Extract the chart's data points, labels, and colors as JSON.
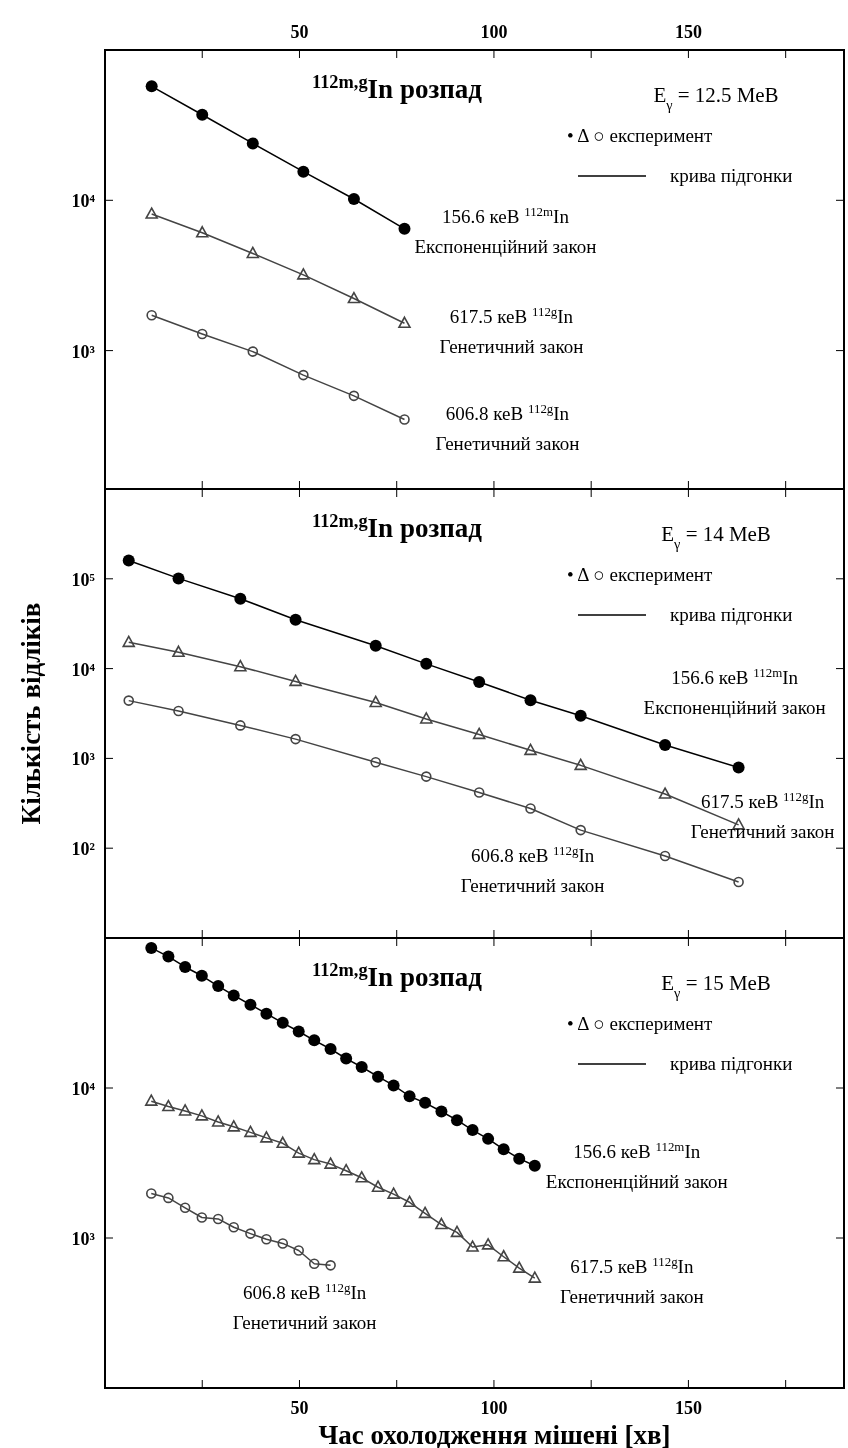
{
  "chart_data": [
    {
      "type": "line",
      "title": "$^{112m,g}$In розпад",
      "subtitle": "E$_{γ}$ = 12.5 МеВ",
      "xlim": [
        0,
        190
      ],
      "xticks": [
        {
          "value": 25,
          "label": null
        },
        50,
        {
          "value": 75,
          "label": null
        },
        100,
        {
          "value": 125,
          "label": null
        },
        150,
        {
          "value": 175,
          "label": null
        }
      ],
      "ylim": [
        120,
        100000
      ],
      "yticks": [
        {
          "value": 1000,
          "label": "10³"
        },
        {
          "value": 10000,
          "label": "10⁴"
        }
      ],
      "log": true,
      "grid": false,
      "line_style": "solid",
      "series": [
        {
          "name": "156.6 кеВ $^{112m}$In\nЕкспоненційний закон",
          "color": "#000000",
          "marker": "circle",
          "x": [
            12,
            25,
            38,
            51,
            64,
            77
          ],
          "values": [
            57300,
            37100,
            23900,
            15500,
            10200,
            6460
          ]
        },
        {
          "name": "617.5 кеВ $^{112g}$In\nГенетичний закон",
          "color": "#444444",
          "marker": "triangle",
          "x": [
            12,
            25,
            38,
            51,
            64,
            77
          ],
          "values": [
            8100,
            6080,
            4430,
            3190,
            2220,
            1520
          ]
        },
        {
          "name": "606.8 кеВ $^{112g}$In\nГенетичний закон",
          "color": "#444444",
          "marker": "circle",
          "x": [
            12,
            25,
            38,
            51,
            64,
            77
          ],
          "values": [
            1720,
            1290,
            985,
            687,
            500,
            348
          ]
        }
      ],
      "annotations": [
        "•   Δ   ○   експеримент",
        "крива підгонки"
      ]
    },
    {
      "type": "line",
      "title": "$^{112m,g}$In розпад",
      "subtitle": "E$_{γ}$ = 14 МеВ",
      "ylabel": "Кількість відліків",
      "xlim": [
        0,
        190
      ],
      "xticks": [
        {
          "value": 25,
          "label": null
        },
        {
          "value": 50,
          "label": null
        },
        {
          "value": 75,
          "label": null
        },
        {
          "value": 100,
          "label": null
        },
        {
          "value": 125,
          "label": null
        },
        {
          "value": 150,
          "label": null
        },
        {
          "value": 175,
          "label": null
        }
      ],
      "log": true,
      "ylim": [
        10,
        1000000
      ],
      "yticks": [
        {
          "value": 100,
          "label": "10²"
        },
        {
          "value": 1000,
          "label": "10³"
        },
        {
          "value": 10000,
          "label": "10⁴"
        },
        {
          "value": 100000,
          "label": "10⁵"
        }
      ],
      "tick_labels": "y",
      "grid": false,
      "line_style": "solid",
      "series": [
        {
          "name": "156.6 кеВ $^{112m}$In\nЕкспоненційний закон",
          "color": "#000000",
          "marker": "circle",
          "x": [
            6.1,
            18.9,
            34.8,
            49,
            69.6,
            82.6,
            96.2,
            109.4,
            122.3,
            144,
            162.9
          ],
          "values": [
            160000,
            101000,
            60000,
            35000,
            18000,
            11300,
            7100,
            4450,
            2990,
            1410,
            791
          ]
        },
        {
          "name": "617.5 кеВ $^{112g}$In\nГенетичний закон",
          "color": "#444444",
          "marker": "triangle",
          "x": [
            6.1,
            18.9,
            34.8,
            49,
            69.6,
            82.6,
            96.2,
            109.4,
            122.3,
            144,
            162.9
          ],
          "values": [
            19600,
            15200,
            10500,
            7200,
            4200,
            2750,
            1850,
            1230,
            837,
            401,
            182
          ]
        },
        {
          "name": "606.8 кеВ $^{112g}$In\nГенетичний закон",
          "color": "#444444",
          "marker": "circle",
          "x": [
            6.1,
            18.9,
            34.8,
            49,
            69.6,
            82.6,
            96.2,
            109.4,
            122.3,
            144,
            162.9
          ],
          "values": [
            4400,
            3370,
            2330,
            1640,
            906,
            627,
            417,
            277,
            159,
            82,
            42
          ]
        }
      ],
      "annotations": [
        "•   Δ   ○   експеримент",
        "крива підгонки"
      ]
    },
    {
      "type": "line",
      "title": "$^{112m,g}$In розпад",
      "subtitle": "E$_{γ}$ = 15 МеВ",
      "xlabel": "Час охолодження мішені  [хв]",
      "xlim": [
        0,
        190
      ],
      "xticks": [
        {
          "value": 25,
          "label": null
        },
        50,
        {
          "value": 75,
          "label": null
        },
        100,
        {
          "value": 125,
          "label": null
        },
        150,
        {
          "value": 175,
          "label": null
        }
      ],
      "ylim": [
        100,
        100000
      ],
      "yticks": [
        {
          "value": 1000,
          "label": "10³"
        },
        {
          "value": 10000,
          "label": "10⁴"
        }
      ],
      "log": true,
      "grid": false,
      "line_style": "solid",
      "series": [
        {
          "name": "156.6 кеВ $^{112m}$In\nЕкспоненційний закон",
          "color": "#000000",
          "marker": "circle",
          "x": [
            11.9,
            16.3,
            20.6,
            24.9,
            29.1,
            33.1,
            37.4,
            41.5,
            45.7,
            49.8,
            53.8,
            58,
            62,
            66,
            70.2,
            74.2,
            78.3,
            82.3,
            86.5,
            90.5,
            94.5,
            98.5,
            102.5,
            106.5,
            110.5
          ],
          "values": [
            85900,
            75200,
            64100,
            56000,
            47800,
            41400,
            35900,
            31300,
            27200,
            23800,
            20800,
            18200,
            15700,
            13800,
            11900,
            10400,
            8810,
            7960,
            6970,
            6100,
            5240,
            4580,
            3900,
            3380,
            3030
          ]
        },
        {
          "name": "617.5 кеВ $^{112g}$In\nГенетичний закон",
          "color": "#444444",
          "marker": "triangle",
          "x": [
            11.9,
            16.3,
            20.6,
            24.9,
            29.1,
            33.1,
            37.4,
            41.5,
            45.7,
            49.8,
            53.8,
            58,
            62,
            66,
            70.2,
            74.2,
            78.3,
            82.3,
            86.5,
            90.5,
            94.5,
            98.5,
            102.5,
            106.5,
            110.5
          ],
          "values": [
            8170,
            7520,
            7030,
            6520,
            5940,
            5510,
            5060,
            4650,
            4280,
            3680,
            3330,
            3110,
            2810,
            2520,
            2180,
            1960,
            1730,
            1460,
            1230,
            1090,
            870,
            900,
            750,
            630,
            540
          ]
        },
        {
          "name": "606.8 кеВ $^{112g}$In\nГенетичний закон",
          "color": "#444444",
          "marker": "circle",
          "x": [
            11.9,
            16.3,
            20.6,
            24.9,
            29.1,
            33.1,
            37.4,
            41.5,
            45.7,
            49.8,
            53.8,
            58
          ],
          "values": [
            1980,
            1850,
            1590,
            1370,
            1340,
            1180,
            1070,
            980,
            920,
            825,
            673,
            657
          ]
        }
      ],
      "annotations": [
        "•   Δ   ○   експеримент",
        "крива підгонки"
      ]
    }
  ]
}
